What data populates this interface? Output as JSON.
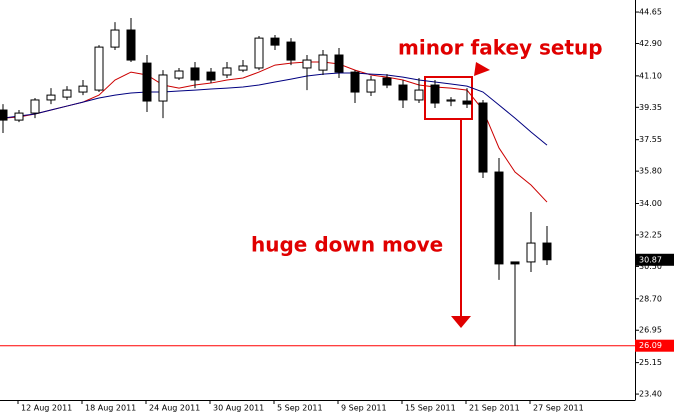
{
  "chart_data": {
    "type": "candlestick",
    "categories": [
      null,
      null,
      "12 Aug 2011",
      null,
      null,
      null,
      "18 Aug 2011",
      null,
      null,
      null,
      "24 Aug 2011",
      null,
      null,
      null,
      "30 Aug 2011",
      null,
      null,
      null,
      "5 Sep 2011",
      null,
      null,
      null,
      "9 Sep 2011",
      null,
      null,
      null,
      "15 Sep 2011",
      null,
      null,
      null,
      "21 Sep 2011",
      null,
      null,
      null,
      "27 Sep 2011"
    ],
    "open": [
      39.2,
      38.64,
      39.03,
      39.76,
      39.92,
      40.2,
      40.31,
      42.7,
      43.65,
      41.81,
      39.7,
      40.98,
      41.54,
      41.31,
      41.15,
      41.42,
      41.54,
      43.2,
      42.98,
      41.54,
      41.42,
      42.26,
      41.31,
      40.2,
      40.98,
      40.59,
      39.76,
      40.59,
      39.7,
      39.7,
      39.59,
      35.75,
      30.75,
      30.75,
      31.8
    ],
    "high": [
      39.53,
      39.2,
      39.87,
      40.42,
      40.53,
      40.87,
      42.81,
      44.09,
      44.32,
      42.26,
      41.42,
      41.54,
      41.87,
      41.54,
      41.87,
      41.98,
      43.32,
      43.37,
      43.2,
      42.26,
      42.54,
      42.65,
      41.42,
      41.09,
      41.2,
      40.87,
      40.98,
      40.87,
      39.92,
      40.42,
      39.76,
      36.53,
      30.75,
      33.53,
      32.75
    ],
    "low": [
      37.92,
      38.53,
      38.75,
      39.53,
      39.76,
      40.03,
      40.2,
      42.54,
      41.87,
      39.09,
      38.75,
      40.87,
      40.42,
      40.7,
      40.98,
      41.31,
      41.42,
      42.54,
      41.7,
      40.31,
      41.15,
      40.98,
      39.59,
      39.98,
      40.42,
      39.31,
      39.59,
      39.31,
      39.42,
      39.31,
      35.42,
      29.75,
      26.09,
      30.19,
      30.58
    ],
    "close": [
      38.64,
      39.03,
      39.76,
      40.03,
      40.31,
      40.53,
      42.7,
      43.65,
      41.98,
      39.7,
      41.15,
      41.37,
      40.87,
      40.87,
      41.54,
      41.65,
      43.2,
      42.81,
      41.98,
      41.98,
      42.26,
      41.31,
      40.2,
      40.87,
      40.59,
      39.76,
      40.31,
      39.59,
      39.76,
      39.53,
      35.75,
      30.64,
      30.64,
      31.8,
      30.87
    ],
    "ma_lines": [
      {
        "color": "#cc0000",
        "values": [
          38.75,
          38.81,
          38.98,
          39.2,
          39.42,
          39.64,
          40.03,
          40.87,
          41.31,
          41.15,
          40.59,
          40.42,
          40.59,
          40.7,
          40.87,
          40.98,
          41.31,
          41.7,
          41.81,
          41.87,
          41.87,
          41.76,
          41.42,
          41.15,
          41.03,
          40.87,
          40.59,
          40.48,
          40.42,
          40.31,
          39.2,
          37.09,
          35.75,
          35.03,
          34.08
        ]
      },
      {
        "color": "#000080",
        "values": [
          38.75,
          38.87,
          38.98,
          39.2,
          39.42,
          39.64,
          39.87,
          40.03,
          40.15,
          40.2,
          40.2,
          40.26,
          40.31,
          40.37,
          40.42,
          40.48,
          40.59,
          40.76,
          40.92,
          41.09,
          41.2,
          41.26,
          41.26,
          41.2,
          41.15,
          41.03,
          40.87,
          40.76,
          40.65,
          40.53,
          40.2,
          39.48,
          38.75,
          37.98,
          37.25
        ]
      }
    ],
    "ylim": [
      23.07,
      45.32
    ],
    "yticks": [
      44.65,
      {
        "value": 42.9,
        "label": "42.90"
      },
      {
        "value": 41.1,
        "label": "41.10"
      },
      39.35,
      37.55,
      {
        "value": 35.8,
        "label": "35.80"
      },
      {
        "value": 34,
        "label": "34.00"
      },
      32.25,
      {
        "value": 30.5,
        "label": "30.50"
      },
      {
        "value": 28.7,
        "label": "28.70"
      },
      26.95,
      25.15,
      {
        "value": 23.4,
        "label": "23.40"
      }
    ],
    "last_price": 30.87,
    "level_line": 26.09,
    "level_color": "#ff0000",
    "annotations": [
      "minor fakey setup",
      "huge down move"
    ]
  }
}
